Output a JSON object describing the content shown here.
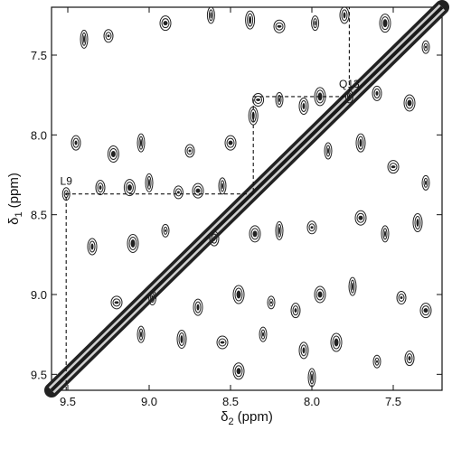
{
  "chart_data": {
    "type": "scatter",
    "title": "",
    "xlabel": {
      "main": "δ",
      "sub": "2",
      "unit": "(ppm)"
    },
    "ylabel": {
      "main": "δ",
      "sub": "1",
      "unit": "(ppm)"
    },
    "xlim": [
      9.6,
      7.2
    ],
    "ylim": [
      7.2,
      9.6
    ],
    "x_ticks": [
      9.5,
      9.0,
      8.5,
      8.0,
      7.5
    ],
    "y_ticks": [
      7.5,
      8.0,
      8.5,
      9.0,
      9.5
    ],
    "x_tick_labels": [
      "9.5",
      "9.0",
      "8.5",
      "8.0",
      "7.5"
    ],
    "y_tick_labels": [
      "7.5",
      "8.0",
      "8.5",
      "9.0",
      "9.5"
    ],
    "grid": false,
    "diagonal": {
      "from": [
        9.6,
        9.6
      ],
      "to": [
        7.2,
        7.2
      ]
    },
    "annotations": [
      {
        "label": "L9",
        "x": 9.51,
        "y": 8.37
      },
      {
        "label": "Q13",
        "x": 7.77,
        "y": 7.76
      }
    ],
    "connectivity_path": [
      [
        9.51,
        9.6
      ],
      [
        9.51,
        8.37
      ],
      [
        8.36,
        8.37
      ],
      [
        8.36,
        7.88
      ],
      [
        8.36,
        7.76
      ],
      [
        7.77,
        7.76
      ],
      [
        7.77,
        7.2
      ]
    ],
    "peaks": [
      [
        9.51,
        8.37
      ],
      [
        9.3,
        8.33
      ],
      [
        9.12,
        8.33
      ],
      [
        9.0,
        8.3
      ],
      [
        8.82,
        8.36
      ],
      [
        8.7,
        8.35
      ],
      [
        8.55,
        8.32
      ],
      [
        8.36,
        7.88
      ],
      [
        8.33,
        7.78
      ],
      [
        8.2,
        7.78
      ],
      [
        8.05,
        7.82
      ],
      [
        7.95,
        7.76
      ],
      [
        7.77,
        7.76
      ],
      [
        7.6,
        7.74
      ],
      [
        7.4,
        7.8
      ],
      [
        9.4,
        7.4
      ],
      [
        9.25,
        7.38
      ],
      [
        8.9,
        7.3
      ],
      [
        8.62,
        7.25
      ],
      [
        8.38,
        7.28
      ],
      [
        8.2,
        7.32
      ],
      [
        7.98,
        7.3
      ],
      [
        7.8,
        7.25
      ],
      [
        7.55,
        7.3
      ],
      [
        7.3,
        7.45
      ],
      [
        9.45,
        8.05
      ],
      [
        9.22,
        8.12
      ],
      [
        9.05,
        8.05
      ],
      [
        8.75,
        8.1
      ],
      [
        8.5,
        8.05
      ],
      [
        7.9,
        8.1
      ],
      [
        7.7,
        8.05
      ],
      [
        7.5,
        8.2
      ],
      [
        7.3,
        8.3
      ],
      [
        9.35,
        8.7
      ],
      [
        9.1,
        8.68
      ],
      [
        8.9,
        8.6
      ],
      [
        8.6,
        8.65
      ],
      [
        8.35,
        8.62
      ],
      [
        8.2,
        8.6
      ],
      [
        8.0,
        8.58
      ],
      [
        7.7,
        8.52
      ],
      [
        7.55,
        8.62
      ],
      [
        7.35,
        8.55
      ],
      [
        9.2,
        9.05
      ],
      [
        8.98,
        9.02
      ],
      [
        8.7,
        9.08
      ],
      [
        8.45,
        9.0
      ],
      [
        8.25,
        9.05
      ],
      [
        8.1,
        9.1
      ],
      [
        7.95,
        9.0
      ],
      [
        7.75,
        8.95
      ],
      [
        7.45,
        9.02
      ],
      [
        7.3,
        9.1
      ],
      [
        9.05,
        9.25
      ],
      [
        8.8,
        9.28
      ],
      [
        8.55,
        9.3
      ],
      [
        8.3,
        9.25
      ],
      [
        8.05,
        9.35
      ],
      [
        7.85,
        9.3
      ],
      [
        7.6,
        9.42
      ],
      [
        7.4,
        9.4
      ],
      [
        8.45,
        9.48
      ],
      [
        8.0,
        9.52
      ]
    ]
  }
}
